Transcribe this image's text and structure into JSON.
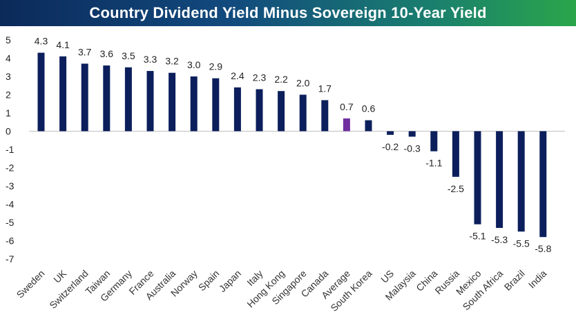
{
  "title": "Country Dividend Yield Minus Sovereign 10-Year Yield",
  "chart_data": {
    "type": "bar",
    "title": "Country Dividend Yield Minus Sovereign 10-Year Yield",
    "xlabel": "",
    "ylabel": "",
    "ylim": [
      -7,
      5
    ],
    "yticks": [
      5,
      4,
      3,
      2,
      1,
      0,
      -1,
      -2,
      -3,
      -4,
      -5,
      -6,
      -7
    ],
    "grid": false,
    "legend": "none",
    "categories": [
      "Sweden",
      "UK",
      "Switzerland",
      "Taiwan",
      "Germany",
      "France",
      "Australia",
      "Norway",
      "Spain",
      "Japan",
      "Italy",
      "Hong Kong",
      "Singapore",
      "Canada",
      "Average",
      "South Korea",
      "US",
      "Malaysia",
      "China",
      "Russia",
      "Mexico",
      "South Africa",
      "Brazil",
      "India"
    ],
    "values": [
      4.3,
      4.1,
      3.7,
      3.6,
      3.5,
      3.3,
      3.2,
      3.0,
      2.9,
      2.4,
      2.3,
      2.2,
      2.0,
      1.7,
      0.7,
      0.6,
      -0.2,
      -0.3,
      -1.1,
      -2.5,
      -5.1,
      -5.3,
      -5.5,
      -5.8
    ],
    "data_labels": [
      "4.3",
      "4.1",
      "3.7",
      "3.6",
      "3.5",
      "3.3",
      "3.2",
      "3.0",
      "2.9",
      "2.4",
      "2.3",
      "2.2",
      "2.0",
      "1.7",
      "0.7",
      "0.6",
      "-0.2",
      "-0.3",
      "-1.1",
      "-2.5",
      "-5.1",
      "-5.3",
      "-5.5",
      "-5.8"
    ],
    "bar_color": "#0c1f5c",
    "highlight_color": "#7030a0",
    "highlight_category": "Average"
  }
}
